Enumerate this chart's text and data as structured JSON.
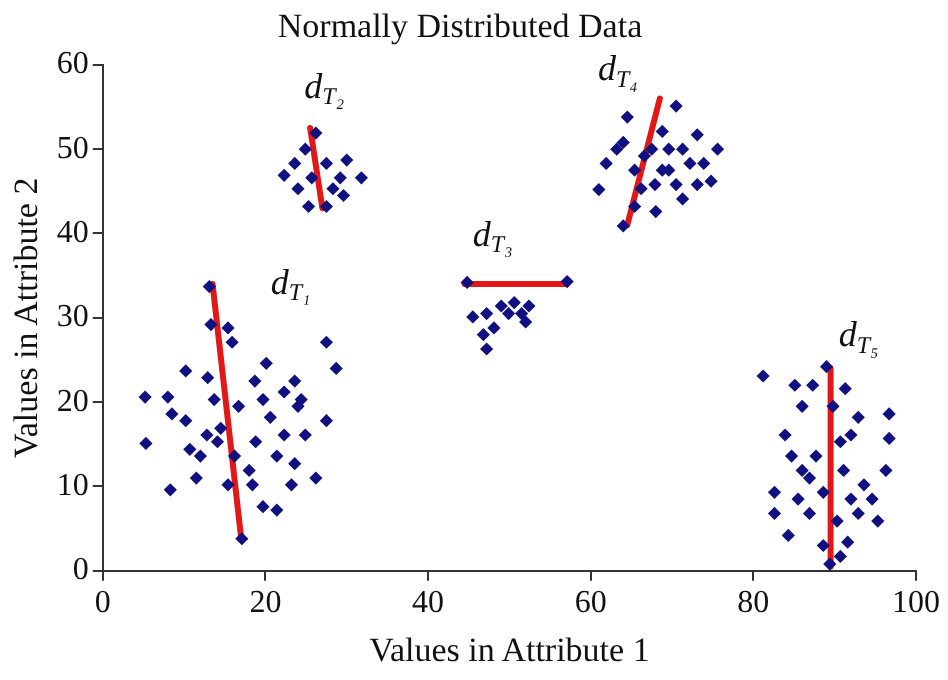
{
  "chart_data": {
    "type": "scatter",
    "title": "Normally Distributed Data",
    "xlabel": "Values in Attribute 1",
    "ylabel": "Values in Attribute 2",
    "xlim": [
      0,
      100
    ],
    "xticks": [
      0,
      20,
      40,
      60,
      80,
      100
    ],
    "ylim": [
      0,
      60
    ],
    "yticks": [
      0,
      10,
      20,
      30,
      40,
      50,
      60
    ],
    "grid": false,
    "legend": false,
    "marker": "diamond",
    "series": [
      {
        "color": "#101080",
        "x": [
          5.2,
          5.3,
          8.3,
          8,
          8.5,
          10.2,
          10.2,
          10.7,
          11.5,
          12.9,
          13.1,
          13.3,
          15.4,
          15.9,
          13.7,
          14.1,
          14.5,
          16.2,
          16.7,
          18.7,
          18,
          18.4,
          20.1,
          20.6,
          19.7,
          21.4,
          22.3,
          22.3,
          23.6,
          24,
          23.6,
          24.9,
          26.2,
          27.5,
          28.7,
          27.5,
          17.1,
          12,
          18.8,
          21.4,
          15.4,
          12.8,
          23.2,
          19.7,
          24.4,
          26.2,
          22.3,
          23.6,
          24,
          25.3,
          27.5,
          28.3,
          27.5,
          30,
          31.8,
          29.6,
          25.7,
          29.2,
          24.9,
          44.8,
          57.1,
          45.5,
          47.2,
          46.8,
          47.2,
          49,
          50.6,
          51.5,
          52.4,
          52,
          48.1,
          49.9,
          61,
          64,
          65.4,
          68,
          61.9,
          64.5,
          64,
          70.5,
          73.1,
          75.6,
          74.8,
          71.3,
          68.8,
          66.6,
          69.6,
          72.2,
          67.9,
          65.4,
          68.8,
          73.9,
          70.5,
          63.2,
          67.5,
          71.3,
          69.6,
          73.1,
          66.2,
          81.2,
          89,
          91.3,
          96.7,
          96.7,
          96.3,
          92.9,
          85.1,
          86,
          83.9,
          82.6,
          82.6,
          84.3,
          86,
          86.9,
          88.6,
          90.7,
          89.4,
          91.1,
          93.6,
          95.3,
          92.9,
          90.7,
          87.7,
          88.6,
          92,
          85.5,
          89.8,
          87.3,
          90.3,
          86.9,
          91.6,
          94.6,
          84.7,
          92
        ],
        "values": [
          20.6,
          15.1,
          9.6,
          20.6,
          18.6,
          23.7,
          17.8,
          14.4,
          11,
          22.9,
          33.7,
          29.2,
          28.8,
          27.1,
          20.3,
          15.3,
          16.9,
          13.6,
          19.5,
          22.5,
          11.9,
          10.2,
          24.6,
          18.2,
          7.6,
          7.2,
          16.1,
          21.2,
          22.5,
          19.5,
          12.7,
          16.1,
          11,
          27.1,
          24,
          17.8,
          3.8,
          13.6,
          15.3,
          13.6,
          10.2,
          16.1,
          10.2,
          20.3,
          20.3,
          51.9,
          46.9,
          48.3,
          45.3,
          43.2,
          43.2,
          45.3,
          48.3,
          48.7,
          46.6,
          44.5,
          46.6,
          46.6,
          50,
          34.2,
          34.3,
          30.1,
          30.5,
          28,
          26.3,
          31.4,
          31.8,
          30.5,
          31.4,
          29.5,
          28.8,
          30.5,
          45.2,
          40.9,
          43.2,
          42.6,
          48.3,
          53.8,
          50.8,
          55.1,
          51.7,
          50,
          46.2,
          44.1,
          47.5,
          49.2,
          50,
          48.3,
          45.8,
          47.5,
          52.1,
          48.3,
          45.8,
          50,
          50,
          50,
          47.5,
          45.8,
          45.3,
          23.1,
          24.2,
          21.6,
          18.6,
          15.7,
          11.9,
          18.2,
          22,
          19.5,
          16.1,
          9.3,
          6.8,
          4.2,
          11.9,
          6.8,
          3,
          1.7,
          0.8,
          11.9,
          10.2,
          5.9,
          6.8,
          15.3,
          13.6,
          9.3,
          8.5,
          8.5,
          19.5,
          22,
          5.9,
          11,
          3.4,
          8.5,
          13.6,
          16.1
        ]
      },
      {
        "type": "line",
        "color": "#e01818",
        "marker": "none",
        "x": [
          13.5,
          17
        ],
        "values": [
          34,
          4
        ]
      },
      {
        "type": "line",
        "color": "#e01818",
        "marker": "none",
        "x": [
          25.5,
          27
        ],
        "values": [
          52.5,
          43
        ]
      },
      {
        "type": "line",
        "color": "#e01818",
        "marker": "none",
        "x": [
          44.5,
          57
        ],
        "values": [
          34,
          34
        ]
      },
      {
        "type": "line",
        "color": "#e01818",
        "marker": "none",
        "x": [
          64.5,
          68.5
        ],
        "values": [
          41,
          56
        ]
      },
      {
        "type": "line",
        "color": "#e01818",
        "marker": "none",
        "x": [
          89.5,
          89.5
        ],
        "values": [
          24,
          0.5
        ]
      }
    ],
    "annotations": [
      "d$_{T₁}$",
      "d$_{T₂}$",
      "d$_{T₃}$",
      "d$_{T₄}$",
      "d$_{T₅}$"
    ]
  }
}
